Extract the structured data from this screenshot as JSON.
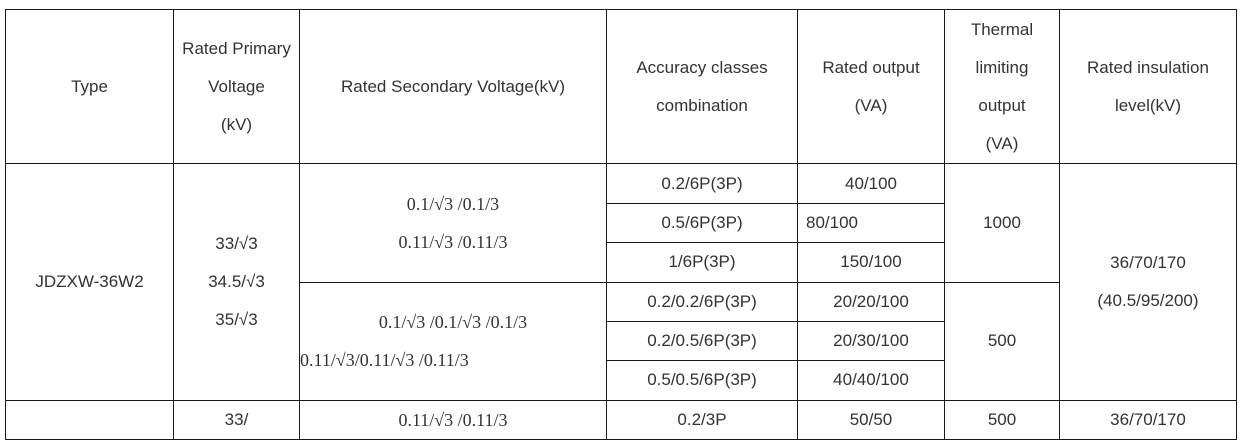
{
  "headers": {
    "type": "Type",
    "primary_voltage": [
      "Rated Primary",
      "Voltage",
      "(kV)"
    ],
    "secondary_voltage": "Rated Secondary Voltage(kV)",
    "accuracy": [
      "Accuracy classes",
      "combination"
    ],
    "output": [
      "Rated output",
      "(VA)"
    ],
    "thermal": [
      "Thermal",
      "limiting",
      "output",
      "(VA)"
    ],
    "insulation": [
      "Rated insulation",
      "level(kV)"
    ]
  },
  "model": "JDZXW-36W2",
  "primary_voltages": [
    "33/√3",
    "34.5/√3",
    "35/√3"
  ],
  "group1": {
    "secondary": [
      "0.1/√3 /0.1/3",
      "0.11/√3 /0.11/3"
    ],
    "rows": [
      {
        "accuracy": "0.2/6P(3P)",
        "output": "40/100"
      },
      {
        "accuracy": "0.5/6P(3P)",
        "output": "80/100"
      },
      {
        "accuracy": "1/6P(3P)",
        "output": "150/100"
      }
    ],
    "thermal": "1000"
  },
  "group2": {
    "secondary": [
      "0.1/√3 /0.1/√3 /0.1/3",
      "0.11/√3/0.11/√3 /0.11/3"
    ],
    "rows": [
      {
        "accuracy": "0.2/0.2/6P(3P)",
        "output": "20/20/100"
      },
      {
        "accuracy": "0.2/0.5/6P(3P)",
        "output": "20/30/100"
      },
      {
        "accuracy": "0.5/0.5/6P(3P)",
        "output": "40/40/100"
      }
    ],
    "thermal": "500"
  },
  "insulation": [
    "36/70/170",
    "(40.5/95/200)"
  ],
  "last_row": {
    "primary": "33/",
    "secondary": "0.11/√3 /0.11/3",
    "accuracy": "0.2/3P",
    "output": "50/50",
    "thermal": "500",
    "insulation": "36/70/170"
  }
}
